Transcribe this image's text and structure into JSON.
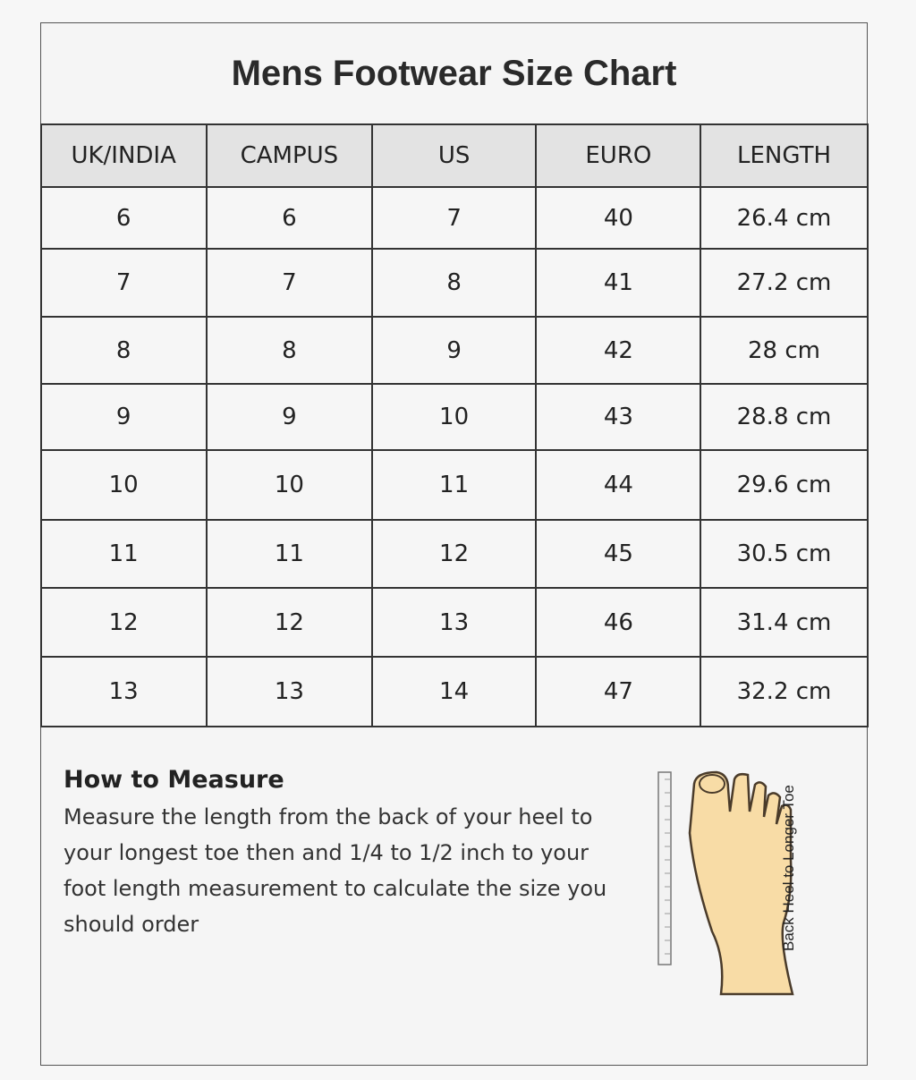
{
  "title": "Mens Footwear Size Chart",
  "table": {
    "headers": [
      "UK/INDIA",
      "CAMPUS",
      "US",
      "EURO",
      "LENGTH"
    ],
    "rows": [
      [
        "6",
        "6",
        "7",
        "40",
        "26.4 cm"
      ],
      [
        "7",
        "7",
        "8",
        "41",
        "27.2 cm"
      ],
      [
        "8",
        "8",
        "9",
        "42",
        "28 cm"
      ],
      [
        "9",
        "9",
        "10",
        "43",
        "28.8 cm"
      ],
      [
        "10",
        "10",
        "11",
        "44",
        "29.6 cm"
      ],
      [
        "11",
        "11",
        "12",
        "45",
        "30.5 cm"
      ],
      [
        "12",
        "12",
        "13",
        "46",
        "31.4 cm"
      ],
      [
        "13",
        "13",
        "14",
        "47",
        "32.2 cm"
      ]
    ]
  },
  "measure": {
    "heading": "How to Measure",
    "text": "Measure the length from the back of your heel to your longest toe then and 1/4 to 1/2 inch to your foot length measurement to calculate the size you should order"
  },
  "illustration": {
    "icon": "foot-with-ruler-icon",
    "caption": "Back Heel to Longer Toe",
    "skin_color": "#f8dca6"
  }
}
